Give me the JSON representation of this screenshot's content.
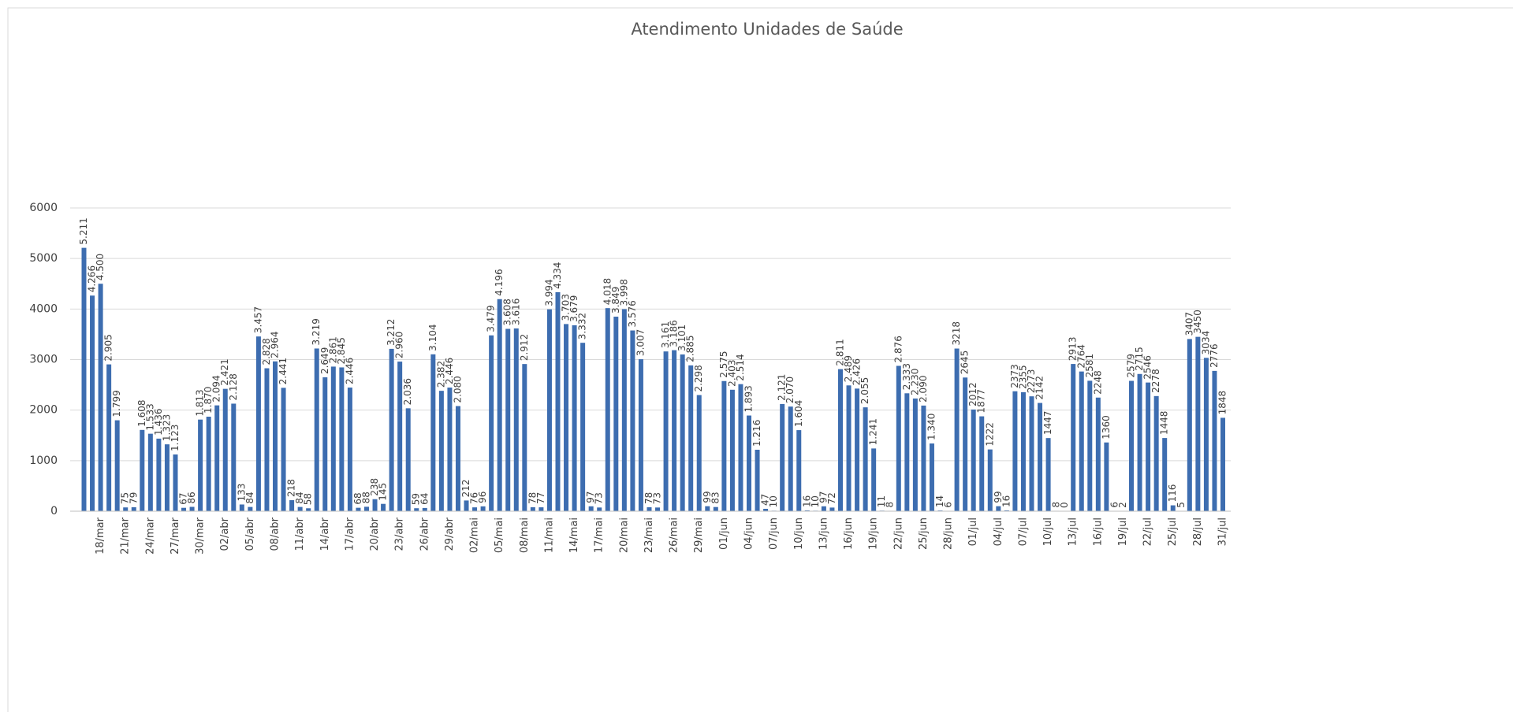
{
  "chart_data": {
    "type": "bar",
    "title": "Atendimento Unidades de Saúde",
    "categories": [
      null,
      null,
      "18/mar",
      null,
      null,
      "21/mar",
      null,
      null,
      "24/mar",
      null,
      null,
      "27/mar",
      null,
      null,
      "30/mar",
      null,
      null,
      "02/abr",
      null,
      null,
      "05/abr",
      null,
      null,
      "08/abr",
      null,
      null,
      "11/abr",
      null,
      null,
      "14/abr",
      null,
      null,
      "17/abr",
      null,
      null,
      "20/abr",
      null,
      null,
      "23/abr",
      null,
      null,
      "26/abr",
      null,
      null,
      "29/abr",
      null,
      null,
      "02/mai",
      null,
      null,
      "05/mai",
      null,
      null,
      "08/mai",
      null,
      null,
      "11/mai",
      null,
      null,
      "14/mai",
      null,
      null,
      "17/mai",
      null,
      null,
      "20/mai",
      null,
      null,
      "23/mai",
      null,
      null,
      "26/mai",
      null,
      null,
      "29/mai",
      null,
      null,
      "01/jun",
      null,
      null,
      "04/jun",
      null,
      null,
      "07/jun",
      null,
      null,
      "10/jun",
      null,
      null,
      "13/jun",
      null,
      null,
      "16/jun",
      null,
      null,
      "19/jun",
      null,
      null,
      "22/jun",
      null,
      null,
      "25/jun",
      null,
      null,
      "28/jun",
      null,
      null,
      "01/jul",
      null,
      null,
      "04/jul",
      null,
      null,
      "07/jul",
      null,
      null,
      "10/jul",
      null,
      null,
      "13/jul",
      null,
      null,
      "16/jul",
      null,
      null,
      "19/jul",
      null,
      null,
      "22/jul",
      null,
      null,
      "25/jul",
      null,
      null,
      "28/jul",
      null,
      null,
      "31/jul"
    ],
    "values": [
      5211,
      4266,
      4500,
      2905,
      1799,
      75,
      79,
      1608,
      1533,
      1436,
      1323,
      1123,
      67,
      86,
      1813,
      1870,
      2094,
      2421,
      2128,
      133,
      84,
      3457,
      2828,
      2964,
      2441,
      218,
      84,
      58,
      3219,
      2649,
      2861,
      2845,
      2446,
      68,
      88,
      238,
      145,
      3212,
      2960,
      2036,
      59,
      64,
      3104,
      2382,
      2446,
      2080,
      212,
      76,
      96,
      3479,
      4196,
      3608,
      3616,
      2912,
      78,
      77,
      3994,
      4334,
      3703,
      3679,
      3332,
      97,
      73,
      4018,
      3849,
      3998,
      3576,
      3007,
      78,
      73,
      3161,
      3186,
      3101,
      2885,
      2298,
      99,
      83,
      2575,
      2403,
      2514,
      1893,
      1216,
      47,
      10,
      2121,
      2070,
      1604,
      16,
      10,
      97,
      72,
      2811,
      2489,
      2426,
      2055,
      1241,
      11,
      8,
      2876,
      2333,
      2230,
      2090,
      1340,
      14,
      6,
      3218,
      2645,
      2012,
      1877,
      1222,
      99,
      16,
      2373,
      2355,
      2273,
      2142,
      1447,
      8,
      0,
      2913,
      2764,
      2581,
      2248,
      1360,
      6,
      2,
      2579,
      2715,
      2546,
      2278,
      1448,
      116,
      5,
      3407,
      3450,
      3034,
      2776,
      1848
    ],
    "value_labels": [
      "5.211",
      "4.266",
      "4.500",
      "2.905",
      "1.799",
      "75",
      "79",
      "1.608",
      "1.533",
      "1.436",
      "1.323",
      "1.123",
      "67",
      "86",
      "1.813",
      "1.870",
      "2.094",
      "2.421",
      "2.128",
      "133",
      "84",
      "3.457",
      "2.828",
      "2.964",
      "2.441",
      "218",
      "84",
      "58",
      "3.219",
      "2.649",
      "2.861",
      "2.845",
      "2.446",
      "68",
      "88",
      "238",
      "145",
      "3.212",
      "2.960",
      "2.036",
      "59",
      "64",
      "3.104",
      "2.382",
      "2.446",
      "2.080",
      "212",
      "76",
      "96",
      "3.479",
      "4.196",
      "3.608",
      "3.616",
      "2.912",
      "78",
      "77",
      "3.994",
      "4.334",
      "3.703",
      "3.679",
      "3.332",
      "97",
      "73",
      "4.018",
      "3.849",
      "3.998",
      "3.576",
      "3.007",
      "78",
      "73",
      "3.161",
      "3.186",
      "3.101",
      "2.885",
      "2.298",
      "99",
      "83",
      "2.575",
      "2.403",
      "2.514",
      "1.893",
      "1.216",
      "47",
      "10",
      "2.121",
      "2.070",
      "1.604",
      "16",
      "10",
      "97",
      "72",
      "2.811",
      "2.489",
      "2.426",
      "2.055",
      "1.241",
      "11",
      "8",
      "2.876",
      "2.333",
      "2.230",
      "2.090",
      "1.340",
      "14",
      "6",
      "3218",
      "2645",
      "2012",
      "1877",
      "1222",
      "99",
      "16",
      "2373",
      "2355",
      "2273",
      "2142",
      "1447",
      "8",
      "0",
      "2913",
      "2764",
      "2581",
      "2248",
      "1360",
      "6",
      "2",
      "2579",
      "2715",
      "2546",
      "2278",
      "1448",
      "116",
      "5",
      "3407",
      "3450",
      "3034",
      "2776",
      "1848"
    ],
    "color": "#3d6db0",
    "ylim": [
      0,
      6000
    ],
    "yticks": [
      0,
      1000,
      2000,
      3000,
      4000,
      5000,
      6000
    ],
    "grid": true
  }
}
